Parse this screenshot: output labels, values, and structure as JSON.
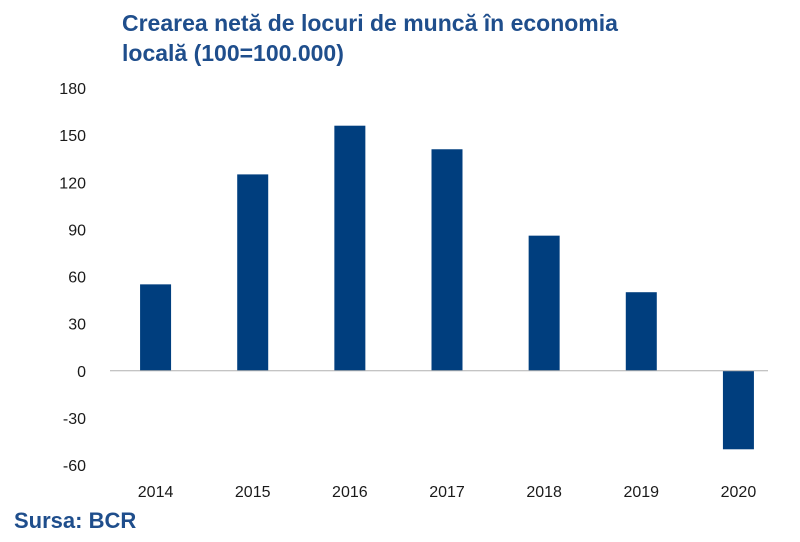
{
  "title_line1": "Crearea netă de locuri de muncă în economia",
  "title_line2": "locală (100=100.000)",
  "source": "Sursa: BCR",
  "colors": {
    "bar": "#003e7e",
    "title": "#1f4e8c",
    "axis": "#b0b0b0"
  },
  "chart_data": {
    "type": "bar",
    "title": "Crearea netă de locuri de muncă în economia locală (100=100.000)",
    "categories": [
      "2014",
      "2015",
      "2016",
      "2017",
      "2018",
      "2019",
      "2020"
    ],
    "values": [
      55,
      125,
      156,
      141,
      86,
      50,
      -50
    ],
    "ylim": [
      -60,
      180
    ],
    "yticks": [
      180,
      150,
      120,
      90,
      60,
      30,
      0,
      -30,
      -60
    ],
    "ytick_labels": [
      "180",
      "150",
      "120",
      "90",
      "60",
      "30",
      "0",
      "-30",
      "-60"
    ],
    "grid": false,
    "legend": "none"
  }
}
